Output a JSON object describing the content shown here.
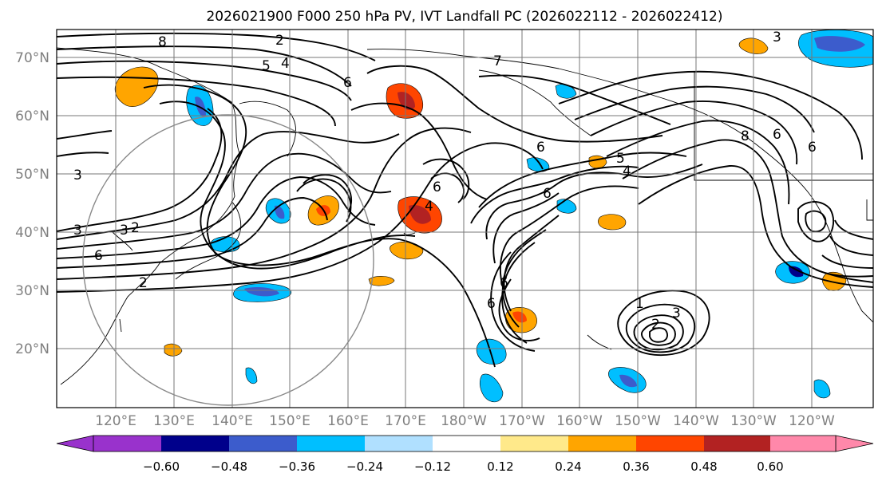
{
  "title": "2026021900 F000 250 hPa PV, IVT Landfall PC (2026022112 - 2026022412)",
  "lat_labels": [
    "70°N",
    "60°N",
    "50°N",
    "40°N",
    "30°N",
    "20°N"
  ],
  "lon_labels": [
    "120°E",
    "130°E",
    "140°E",
    "150°E",
    "160°E",
    "170°E",
    "180°W",
    "170°W",
    "160°W",
    "150°W",
    "140°W",
    "130°W",
    "120°W"
  ],
  "colorbar": {
    "tick_labels": [
      "−0.60",
      "−0.48",
      "−0.36",
      "−0.24",
      "−0.12",
      "0.12",
      "0.24",
      "0.36",
      "0.48",
      "0.60"
    ],
    "colors": [
      "#9932cc",
      "#00008b",
      "#3c5ccc",
      "#00bfff",
      "#b0e0ff",
      "#ffffff",
      "#ffe98a",
      "#ffa500",
      "#ff4500",
      "#b22222",
      "#ff88aa"
    ]
  },
  "contour_labels": [
    {
      "text": "8"
    },
    {
      "text": "2"
    },
    {
      "text": "5"
    },
    {
      "text": "4"
    },
    {
      "text": "6"
    },
    {
      "text": "7"
    },
    {
      "text": "3"
    },
    {
      "text": "3"
    },
    {
      "text": "3"
    },
    {
      "text": "2"
    },
    {
      "text": "6"
    },
    {
      "text": "2"
    },
    {
      "text": "4"
    },
    {
      "text": "6"
    },
    {
      "text": "6"
    },
    {
      "text": "5"
    },
    {
      "text": "4"
    },
    {
      "text": "6"
    },
    {
      "text": "6"
    },
    {
      "text": "6"
    },
    {
      "text": "1"
    },
    {
      "text": "2"
    },
    {
      "text": "3"
    },
    {
      "text": "8"
    },
    {
      "text": "6"
    },
    {
      "text": "6"
    },
    {
      "text": "3"
    }
  ]
}
